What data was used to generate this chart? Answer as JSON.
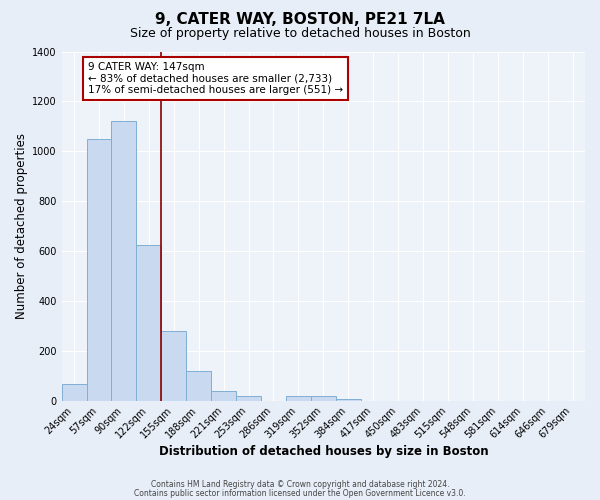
{
  "title": "9, CATER WAY, BOSTON, PE21 7LA",
  "subtitle": "Size of property relative to detached houses in Boston",
  "xlabel": "Distribution of detached houses by size in Boston",
  "ylabel": "Number of detached properties",
  "footnote1": "Contains HM Land Registry data © Crown copyright and database right 2024.",
  "footnote2": "Contains public sector information licensed under the Open Government Licence v3.0.",
  "bar_labels": [
    "24sqm",
    "57sqm",
    "90sqm",
    "122sqm",
    "155sqm",
    "188sqm",
    "221sqm",
    "253sqm",
    "286sqm",
    "319sqm",
    "352sqm",
    "384sqm",
    "417sqm",
    "450sqm",
    "483sqm",
    "515sqm",
    "548sqm",
    "581sqm",
    "614sqm",
    "646sqm",
    "679sqm"
  ],
  "bar_values": [
    65,
    1050,
    1120,
    625,
    280,
    120,
    40,
    18,
    0,
    18,
    18,
    8,
    0,
    0,
    0,
    0,
    0,
    0,
    0,
    0,
    0
  ],
  "bar_color": "#c9d9f0",
  "bar_edge_color": "#7fafd4",
  "vline_x_idx": 3,
  "vline_color": "#8b0000",
  "ylim": [
    0,
    1400
  ],
  "yticks": [
    0,
    200,
    400,
    600,
    800,
    1000,
    1200,
    1400
  ],
  "annotation_text": "9 CATER WAY: 147sqm\n← 83% of detached houses are smaller (2,733)\n17% of semi-detached houses are larger (551) →",
  "annotation_box_edge": "#aa0000",
  "bg_color": "#e8eef8",
  "plot_bg_color": "#eef3fa",
  "grid_color": "#ffffff",
  "title_fontsize": 11,
  "subtitle_fontsize": 9,
  "axis_label_fontsize": 8.5,
  "tick_fontsize": 7,
  "annotation_fontsize": 7.5,
  "footnote_fontsize": 5.5
}
